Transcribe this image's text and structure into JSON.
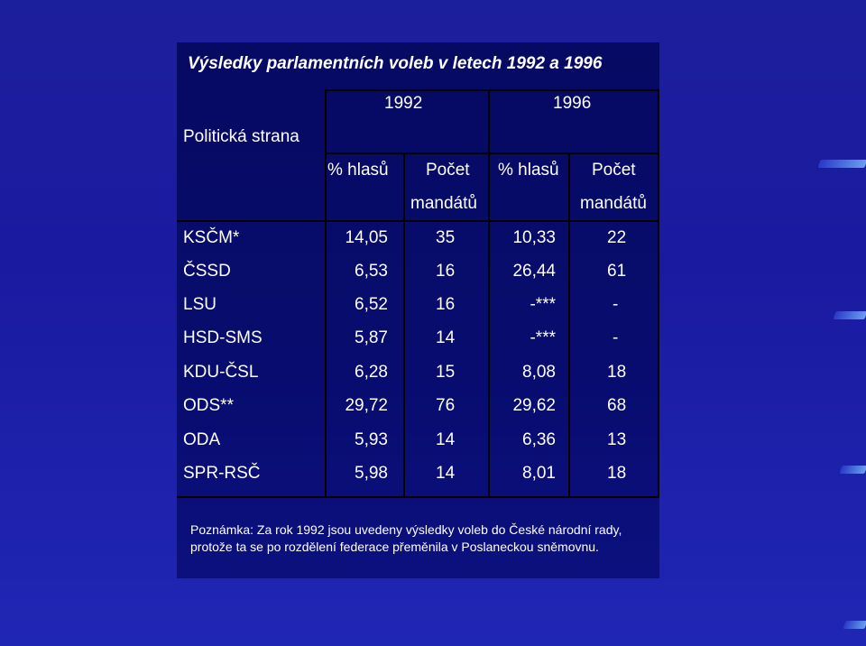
{
  "title": "Výsledky parlamentních voleb v letech 1992 a 1996",
  "table": {
    "party_header": "Politická strana",
    "years": [
      "1992",
      "1996"
    ],
    "col_votes": "% hlasů",
    "col_seats_1": "Počet",
    "col_seats_2": "mandátů",
    "rows": [
      {
        "party": "KSČM*",
        "v1992": "14,05",
        "s1992": "35",
        "v1996": "10,33",
        "s1996": "22"
      },
      {
        "party": "ČSSD",
        "v1992": "6,53",
        "s1992": "16",
        "v1996": "26,44",
        "s1996": "61"
      },
      {
        "party": "LSU",
        "v1992": "6,52",
        "s1992": "16",
        "v1996": "-***",
        "s1996": "-"
      },
      {
        "party": "HSD-SMS",
        "v1992": "5,87",
        "s1992": "14",
        "v1996": "-***",
        "s1996": "-"
      },
      {
        "party": "KDU-ČSL",
        "v1992": "6,28",
        "s1992": "15",
        "v1996": "8,08",
        "s1996": "18"
      },
      {
        "party": "ODS**",
        "v1992": "29,72",
        "s1992": "76",
        "v1996": "29,62",
        "s1996": "68"
      },
      {
        "party": "ODA",
        "v1992": "5,93",
        "s1992": "14",
        "v1996": "6,36",
        "s1996": "13"
      },
      {
        "party": "SPR-RSČ",
        "v1992": "5,98",
        "s1992": "14",
        "v1996": "8,01",
        "s1996": "18"
      }
    ]
  },
  "note": {
    "line1": "Poznámka: Za rok 1992 jsou uvedeny výsledky voleb do České národní rady,",
    "line2": "protože ta se po rozdělení federace přeměnila v Poslaneckou sněmovnu."
  }
}
